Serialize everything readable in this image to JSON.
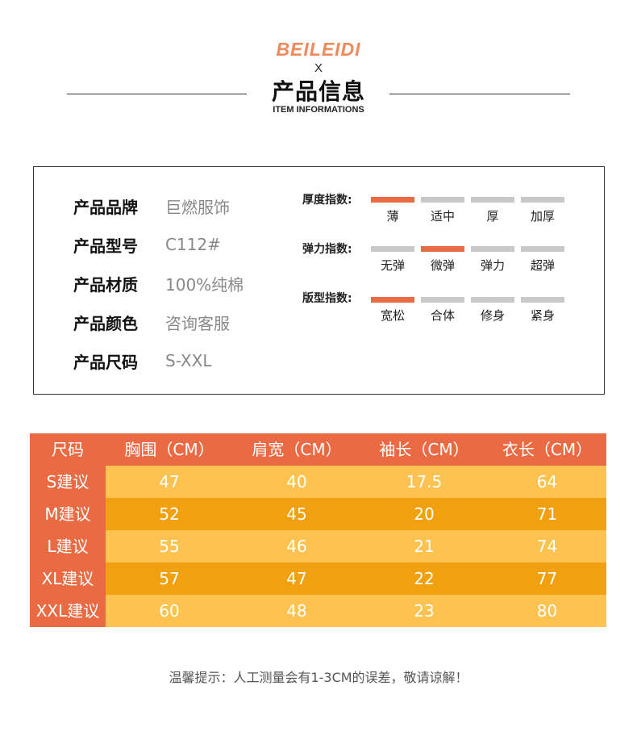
{
  "header": {
    "brand": "BEILEIDI",
    "x": "X",
    "title_cn": "产品信息",
    "title_en": "ITEM INFORMATIONS",
    "brand_color": "#F08A5D"
  },
  "specs": [
    {
      "label": "产品品牌",
      "value": "巨燃服饰"
    },
    {
      "label": "产品型号",
      "value": "C112#"
    },
    {
      "label": "产品材质",
      "value": "100%纯棉"
    },
    {
      "label": "产品颜色",
      "value": "咨询客服"
    },
    {
      "label": "产品尺码",
      "value": "S-XXL"
    }
  ],
  "indices": [
    {
      "label": "厚度指数:",
      "options": [
        "薄",
        "适中",
        "厚",
        "加厚"
      ],
      "active": "薄"
    },
    {
      "label": "弹力指数:",
      "options": [
        "无弹",
        "微弹",
        "弹力",
        "超弹"
      ],
      "active": "微弹"
    },
    {
      "label": "版型指数:",
      "options": [
        "宽松",
        "合体",
        "修身",
        "紧身"
      ],
      "active": "宽松"
    }
  ],
  "size_table": {
    "headers": [
      "尺码",
      "胸围（CM）",
      "肩宽（CM）",
      "袖长（CM）",
      "衣长（CM）"
    ],
    "rows": [
      [
        "S建议",
        "47",
        "40",
        "17.5",
        "64"
      ],
      [
        "M建议",
        "52",
        "45",
        "20",
        "71"
      ],
      [
        "L建议",
        "55",
        "46",
        "21",
        "74"
      ],
      [
        "XL建议",
        "57",
        "47",
        "22",
        "77"
      ],
      [
        "XXL建议",
        "60",
        "48",
        "23",
        "80"
      ]
    ]
  },
  "colors": {
    "accent": "#EA6A43",
    "row_light": "#FDC24F",
    "row_dark": "#F1A00F",
    "inactive_segment": "#C8C8C8"
  },
  "note": "温馨提示：人工测量会有1-3CM的误差，敬请谅解！"
}
